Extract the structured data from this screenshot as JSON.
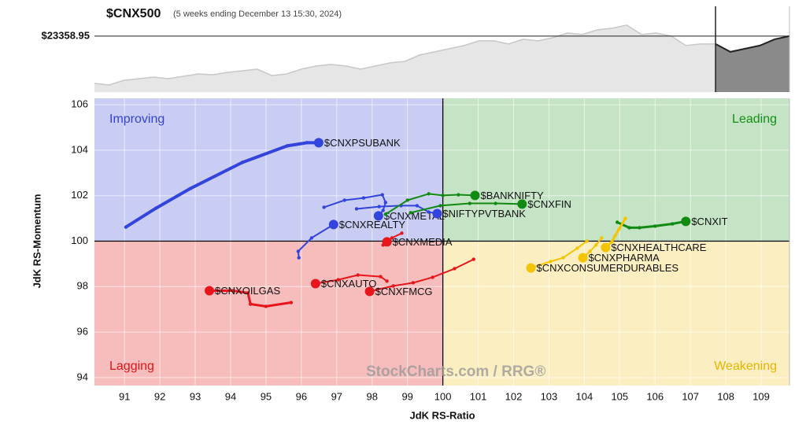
{
  "chart_data": [
    {
      "type": "area",
      "title": "$CNX500",
      "subtitle": "(5 weeks ending December 13 15:30, 2024)",
      "values": [
        22042,
        21998,
        22129,
        22173,
        22217,
        22173,
        22239,
        22305,
        22283,
        22349,
        22393,
        22437,
        22261,
        22305,
        22437,
        22525,
        22569,
        22525,
        22437,
        22525,
        22613,
        22656,
        22832,
        22920,
        23008,
        23096,
        23227,
        23227,
        23140,
        23271,
        23227,
        23315,
        23447,
        23403,
        23535,
        23579,
        23667,
        23403,
        23447,
        23359,
        23096,
        23140,
        23140,
        22920,
        23008,
        23096,
        23271,
        23359
      ],
      "split_index": 42,
      "ylim": [
        21800,
        24190
      ],
      "reference": {
        "value": 23358.95,
        "label": "$23358.95"
      },
      "color": "#e6e6e6",
      "highlight_color": "#8a8a8a"
    },
    {
      "type": "rrg",
      "xlabel": "JdK RS-Ratio",
      "ylabel": "JdK RS-Momentum",
      "xlim": [
        90.15,
        109.8
      ],
      "ylim": [
        93.65,
        106.28
      ],
      "xticks": [
        91,
        92,
        93,
        94,
        95,
        96,
        97,
        98,
        99,
        100,
        101,
        102,
        103,
        104,
        105,
        106,
        107,
        108,
        109
      ],
      "yticks": [
        94,
        96,
        98,
        100,
        102,
        104,
        106
      ],
      "center": [
        100,
        100
      ],
      "quadrants": [
        {
          "label": "Improving",
          "color": "#3344cc",
          "fill": "#c9cdf4"
        },
        {
          "label": "Leading",
          "color": "#129012",
          "fill": "#c5e3c5"
        },
        {
          "label": "Lagging",
          "color": "#e0141a",
          "fill": "#f7bdbd"
        },
        {
          "label": "Weakening",
          "color": "#e8b400",
          "fill": "#fbefc2"
        }
      ],
      "watermark": "StockCharts.com / RRG®",
      "series": [
        {
          "name": "$CNXPSUBANK",
          "color": "#3344dd",
          "line_width": 4,
          "x": [
            91.04,
            91.89,
            92.87,
            94.33,
            95.6,
            96.16,
            96.49
          ],
          "values": [
            100.62,
            101.45,
            102.32,
            103.46,
            104.19,
            104.33,
            104.33
          ]
        },
        {
          "name": "$CNXMETAL",
          "color": "#3344dd",
          "line_width": 2,
          "x": [
            96.64,
            97.22,
            97.76,
            98.29,
            98.38,
            98.31,
            98.18
          ],
          "values": [
            101.49,
            101.8,
            101.9,
            102.04,
            101.7,
            101.35,
            101.11
          ]
        },
        {
          "name": "$CNXREALTY",
          "color": "#3344dd",
          "line_width": 2,
          "x": [
            95.93,
            95.91,
            96.29,
            96.91
          ],
          "values": [
            99.27,
            99.55,
            100.14,
            100.73
          ]
        },
        {
          "name": "$NIFTYPVTBANK",
          "color": "#3344dd",
          "line_width": 2,
          "x": [
            97.56,
            98.2,
            98.82,
            99.27,
            99.6,
            99.84
          ],
          "values": [
            101.42,
            101.52,
            101.56,
            101.56,
            101.28,
            101.21
          ]
        },
        {
          "name": "$BANKNIFTY",
          "color": "#118a11",
          "line_width": 2,
          "x": [
            98.38,
            99.0,
            99.6,
            100.0,
            100.44,
            100.91
          ],
          "values": [
            101.18,
            101.8,
            102.08,
            102.01,
            102.04,
            102.01
          ]
        },
        {
          "name": "$CNXFIN",
          "color": "#118a11",
          "line_width": 2,
          "x": [
            99.09,
            99.93,
            100.76,
            101.49,
            102.24
          ],
          "values": [
            101.25,
            101.56,
            101.66,
            101.66,
            101.63
          ]
        },
        {
          "name": "$CNXIT",
          "color": "#118a11",
          "line_width": 3,
          "x": [
            104.93,
            105.27,
            105.56,
            106.0,
            106.49,
            106.87
          ],
          "values": [
            100.83,
            100.59,
            100.59,
            100.66,
            100.76,
            100.87
          ]
        },
        {
          "name": "$CNXMEDIA",
          "color": "#e8151b",
          "line_width": 2,
          "x": [
            98.84,
            98.56,
            98.31,
            98.42
          ],
          "values": [
            100.35,
            100.14,
            99.83,
            99.97
          ]
        },
        {
          "name": "$CNXAUTO",
          "color": "#e8151b",
          "line_width": 2,
          "x": [
            98.42,
            98.24,
            97.6,
            97.04,
            96.4
          ],
          "values": [
            98.24,
            98.44,
            98.51,
            98.3,
            98.13
          ]
        },
        {
          "name": "$CNXFMCG",
          "color": "#e8151b",
          "line_width": 2,
          "x": [
            100.87,
            100.33,
            99.71,
            99.16,
            98.6,
            97.93
          ],
          "values": [
            99.2,
            98.79,
            98.41,
            98.17,
            98.03,
            97.79
          ]
        },
        {
          "name": "$CNXOILGAS",
          "color": "#e8151b",
          "line_width": 3,
          "x": [
            95.71,
            95.0,
            94.56,
            94.49,
            94.07,
            93.4
          ],
          "values": [
            97.3,
            97.13,
            97.23,
            97.72,
            97.82,
            97.82
          ]
        },
        {
          "name": "$CNXHEALTHCARE",
          "color": "#f5c400",
          "line_width": 3,
          "x": [
            105.16,
            104.98,
            104.87,
            104.78,
            104.6
          ],
          "values": [
            101.0,
            100.52,
            100.24,
            99.97,
            99.72
          ]
        },
        {
          "name": "$CNXPHARMA",
          "color": "#f5c400",
          "line_width": 2,
          "x": [
            104.49,
            104.33,
            104.16,
            103.96
          ],
          "values": [
            100.14,
            99.83,
            99.55,
            99.27
          ]
        },
        {
          "name": "$CNXCONSUMERDURABLES",
          "color": "#f5c400",
          "line_width": 2,
          "x": [
            104.07,
            103.8,
            103.4,
            103.04,
            102.49
          ],
          "values": [
            100.0,
            99.69,
            99.27,
            99.1,
            98.82
          ]
        }
      ]
    }
  ]
}
